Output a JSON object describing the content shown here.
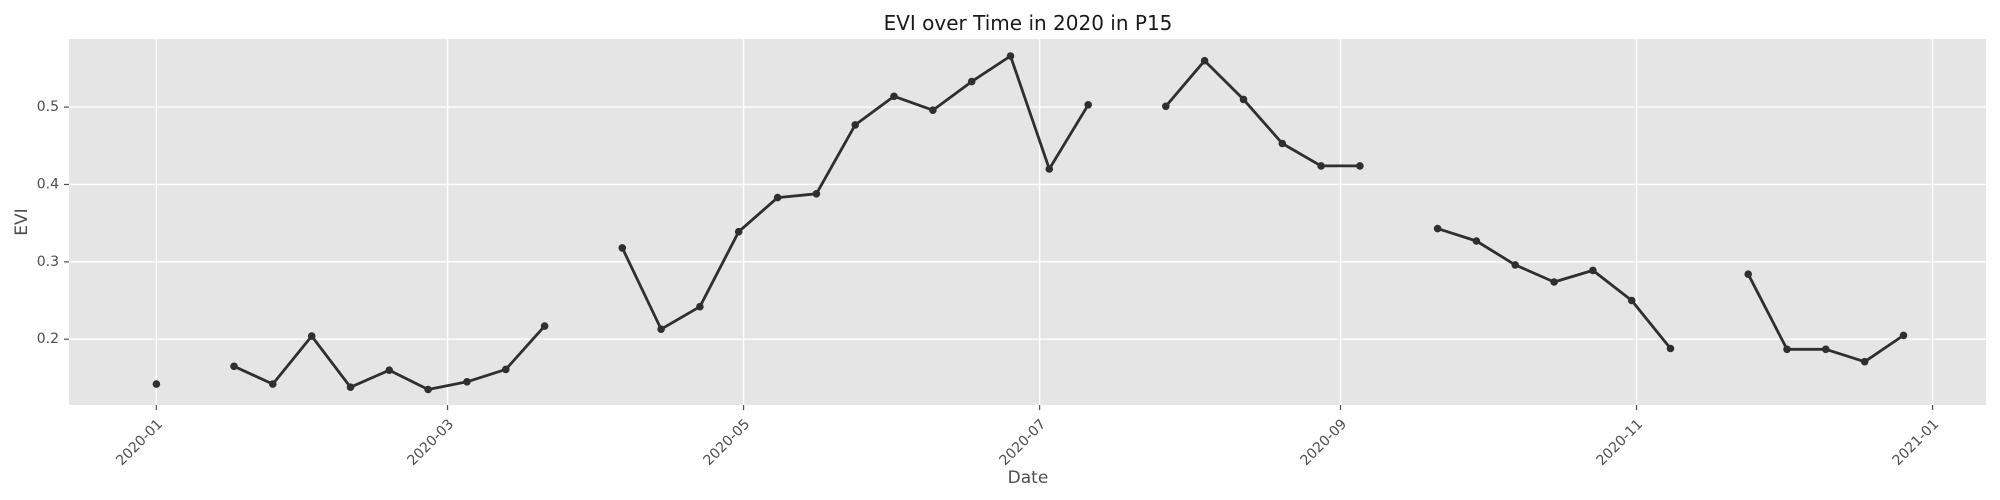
{
  "chart_data": {
    "type": "line",
    "title": "EVI over Time in 2020 in P15",
    "xlabel": "Date",
    "ylabel": "EVI",
    "grid": true,
    "x_ticks": [
      "2020-01",
      "2020-03",
      "2020-05",
      "2020-07",
      "2020-09",
      "2020-11",
      "2021-01"
    ],
    "y_ticks": [
      "0.2",
      "0.3",
      "0.4",
      "0.5"
    ],
    "xlim": [
      "2019-12-14",
      "2021-01-12"
    ],
    "ylim": [
      0.115,
      0.588
    ],
    "series": [
      {
        "color": "#2f2f2f",
        "points": [
          {
            "x": "2020-01-01",
            "y": 0.142
          },
          {
            "x": "2020-01-17",
            "y": null
          },
          {
            "x": "2020-01-17",
            "y": 0.165
          },
          {
            "x": "2020-01-25",
            "y": 0.142
          },
          {
            "x": "2020-02-02",
            "y": 0.204
          },
          {
            "x": "2020-02-10",
            "y": 0.138
          },
          {
            "x": "2020-02-18",
            "y": 0.16
          },
          {
            "x": "2020-02-26",
            "y": 0.135
          },
          {
            "x": "2020-03-05",
            "y": 0.145
          },
          {
            "x": "2020-03-13",
            "y": 0.161
          },
          {
            "x": "2020-03-21",
            "y": 0.217
          },
          {
            "x": "2020-03-29",
            "y": null
          },
          {
            "x": "2020-04-06",
            "y": 0.318
          },
          {
            "x": "2020-04-14",
            "y": 0.213
          },
          {
            "x": "2020-04-22",
            "y": 0.242
          },
          {
            "x": "2020-04-30",
            "y": 0.339
          },
          {
            "x": "2020-05-08",
            "y": 0.383
          },
          {
            "x": "2020-05-16",
            "y": 0.388
          },
          {
            "x": "2020-05-24",
            "y": 0.477
          },
          {
            "x": "2020-06-01",
            "y": 0.514
          },
          {
            "x": "2020-06-09",
            "y": 0.496
          },
          {
            "x": "2020-06-17",
            "y": 0.533
          },
          {
            "x": "2020-06-25",
            "y": 0.566
          },
          {
            "x": "2020-07-03",
            "y": 0.42
          },
          {
            "x": "2020-07-11",
            "y": 0.503
          },
          {
            "x": "2020-07-19",
            "y": null
          },
          {
            "x": "2020-07-27",
            "y": 0.501
          },
          {
            "x": "2020-08-04",
            "y": 0.56
          },
          {
            "x": "2020-08-12",
            "y": 0.51
          },
          {
            "x": "2020-08-20",
            "y": 0.453
          },
          {
            "x": "2020-08-28",
            "y": 0.424
          },
          {
            "x": "2020-09-05",
            "y": 0.424
          },
          {
            "x": "2020-09-13",
            "y": null
          },
          {
            "x": "2020-09-21",
            "y": 0.343
          },
          {
            "x": "2020-09-29",
            "y": 0.327
          },
          {
            "x": "2020-10-07",
            "y": 0.296
          },
          {
            "x": "2020-10-15",
            "y": 0.274
          },
          {
            "x": "2020-10-23",
            "y": 0.289
          },
          {
            "x": "2020-10-31",
            "y": 0.25
          },
          {
            "x": "2020-11-08",
            "y": 0.188
          },
          {
            "x": "2020-11-16",
            "y": null
          },
          {
            "x": "2020-11-24",
            "y": 0.284
          },
          {
            "x": "2020-12-02",
            "y": 0.187
          },
          {
            "x": "2020-12-10",
            "y": 0.187
          },
          {
            "x": "2020-12-18",
            "y": 0.171
          },
          {
            "x": "2020-12-26",
            "y": 0.205
          }
        ]
      }
    ]
  }
}
